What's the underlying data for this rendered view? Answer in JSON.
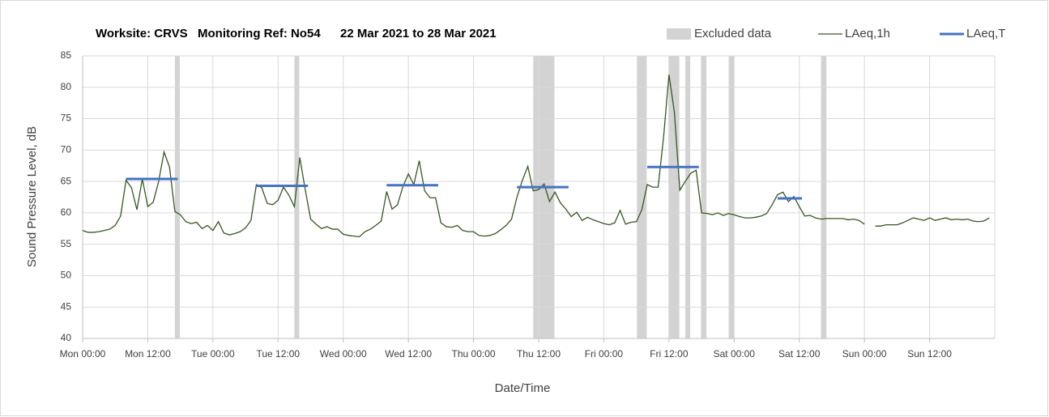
{
  "chart_data": {
    "type": "line",
    "title": [
      "Worksite: CRVS",
      "Monitoring Ref: No54",
      "22 Mar 2021 to 28 Mar 2021"
    ],
    "x_label": "Date/Time",
    "y_label": "Sound Pressure Level, dB",
    "xlim": [
      0,
      168
    ],
    "xticks": [
      {
        "value": 0,
        "label": "Mon 00:00"
      },
      {
        "value": 12,
        "label": "Mon 12:00"
      },
      {
        "value": 24,
        "label": "Tue 00:00"
      },
      {
        "value": 36,
        "label": "Tue 12:00"
      },
      {
        "value": 48,
        "label": "Wed 00:00"
      },
      {
        "value": 60,
        "label": "Wed 12:00"
      },
      {
        "value": 72,
        "label": "Thu 00:00"
      },
      {
        "value": 84,
        "label": "Thu 12:00"
      },
      {
        "value": 96,
        "label": "Fri 00:00"
      },
      {
        "value": 108,
        "label": "Fri 12:00"
      },
      {
        "value": 120,
        "label": "Sat 00:00"
      },
      {
        "value": 132,
        "label": "Sat 12:00"
      },
      {
        "value": 144,
        "label": "Sun 00:00"
      },
      {
        "value": 156,
        "label": "Sun 12:00"
      }
    ],
    "ylim": [
      40,
      85
    ],
    "yticks": [
      40,
      45,
      50,
      55,
      60,
      65,
      70,
      75,
      80,
      85
    ],
    "grid": true,
    "legend": "top-right",
    "excluded": {
      "name": "Excluded data",
      "color": "#d3d3d3",
      "ranges": [
        [
          17,
          17.9
        ],
        [
          39,
          39.9
        ],
        [
          83,
          86.9
        ],
        [
          102.1,
          103.9
        ],
        [
          107.9,
          109.9
        ],
        [
          111,
          111.9
        ],
        [
          113.9,
          114.9
        ],
        [
          119,
          120
        ],
        [
          136,
          137
        ]
      ]
    },
    "x": [
      0,
      1,
      2,
      3,
      4,
      5,
      6,
      7,
      8,
      9,
      10,
      11,
      12,
      13,
      14,
      15,
      16,
      17,
      18,
      19,
      20,
      21,
      22,
      23,
      24,
      25,
      26,
      27,
      28,
      29,
      30,
      31,
      32,
      33,
      34,
      35,
      36,
      37,
      38,
      39,
      40,
      41,
      42,
      43,
      44,
      45,
      46,
      47,
      48,
      49,
      50,
      51,
      52,
      53,
      54,
      55,
      56,
      57,
      58,
      59,
      60,
      61,
      62,
      63,
      64,
      65,
      66,
      67,
      68,
      69,
      70,
      71,
      72,
      73,
      74,
      75,
      76,
      77,
      78,
      79,
      80,
      81,
      82,
      83,
      84,
      85,
      86,
      87,
      88,
      89,
      90,
      91,
      92,
      93,
      94,
      95,
      96,
      97,
      98,
      99,
      100,
      101,
      102,
      103,
      104,
      105,
      106,
      107,
      108,
      109,
      110,
      111,
      112,
      113,
      114,
      115,
      116,
      117,
      118,
      119,
      120,
      121,
      122,
      123,
      124,
      125,
      126,
      127,
      128,
      129,
      130,
      131,
      132,
      133,
      134,
      135,
      136,
      137,
      138,
      139,
      140,
      141,
      142,
      143,
      144,
      145,
      146,
      147,
      148,
      149,
      150,
      151,
      152,
      153,
      154,
      155,
      156,
      157,
      158,
      159,
      160,
      161,
      162,
      163,
      164,
      165,
      166,
      167
    ],
    "series": [
      {
        "name": "LAeq,1h",
        "color": "#375623",
        "values": [
          57.2,
          56.9,
          56.9,
          57.0,
          57.2,
          57.4,
          58.0,
          59.5,
          65.2,
          64.0,
          60.5,
          65.4,
          61.0,
          61.7,
          65.0,
          69.7,
          67.3,
          60.2,
          59.7,
          58.6,
          58.3,
          58.5,
          57.5,
          58.0,
          57.2,
          58.6,
          56.8,
          56.5,
          56.7,
          57.0,
          57.6,
          58.8,
          64.5,
          64.0,
          61.5,
          61.3,
          62.0,
          64.1,
          62.8,
          61.0,
          68.8,
          63.7,
          59.0,
          58.2,
          57.5,
          57.8,
          57.4,
          57.4,
          56.6,
          56.4,
          56.3,
          56.2,
          57.0,
          57.4,
          58.0,
          58.7,
          63.4,
          60.6,
          61.3,
          64.2,
          66.2,
          64.5,
          68.3,
          63.5,
          62.4,
          62.4,
          58.4,
          57.8,
          57.7,
          58.0,
          57.2,
          57.0,
          57.0,
          56.4,
          56.3,
          56.4,
          56.7,
          57.3,
          58.0,
          59.0,
          62.5,
          65.2,
          67.4,
          63.5,
          63.7,
          64.6,
          61.8,
          63.3,
          61.6,
          60.6,
          59.4,
          60.1,
          58.8,
          59.3,
          58.9,
          58.6,
          58.3,
          58.1,
          58.4,
          60.4,
          58.2,
          58.5,
          58.6,
          60.5,
          64.5,
          64.1,
          64.1,
          72.0,
          82.0,
          76.0,
          63.6,
          65.0,
          66.3,
          66.8,
          60.0,
          59.9,
          59.7,
          60.0,
          59.6,
          59.9,
          59.7,
          59.4,
          59.2,
          59.2,
          59.3,
          59.5,
          59.9,
          61.3,
          62.9,
          63.3,
          61.8,
          62.6,
          61.0,
          59.5,
          59.6,
          59.2,
          59.0,
          59.1,
          59.1,
          59.1,
          59.1,
          58.9,
          59.0,
          58.8,
          58.2,
          null,
          57.9,
          57.9,
          58.1,
          58.1,
          58.1,
          58.4,
          58.8,
          59.2,
          59.0,
          58.8,
          59.2,
          58.8,
          59.0,
          59.2,
          58.9,
          59.0,
          58.9,
          59.0,
          58.7,
          58.6,
          58.7,
          59.2
        ]
      },
      {
        "name": "LAeq,T",
        "color": "#4472c4",
        "segments": [
          {
            "x": [
              8,
              17.5
            ],
            "value": 65.4
          },
          {
            "x": [
              32,
              41.5
            ],
            "value": 64.3
          },
          {
            "x": [
              56,
              65.5
            ],
            "value": 64.4
          },
          {
            "x": [
              80,
              89.5
            ],
            "value": 64.1
          },
          {
            "x": [
              104,
              113.5
            ],
            "value": 67.3
          },
          {
            "x": [
              128,
              132.5
            ],
            "value": 62.3
          }
        ]
      }
    ]
  }
}
